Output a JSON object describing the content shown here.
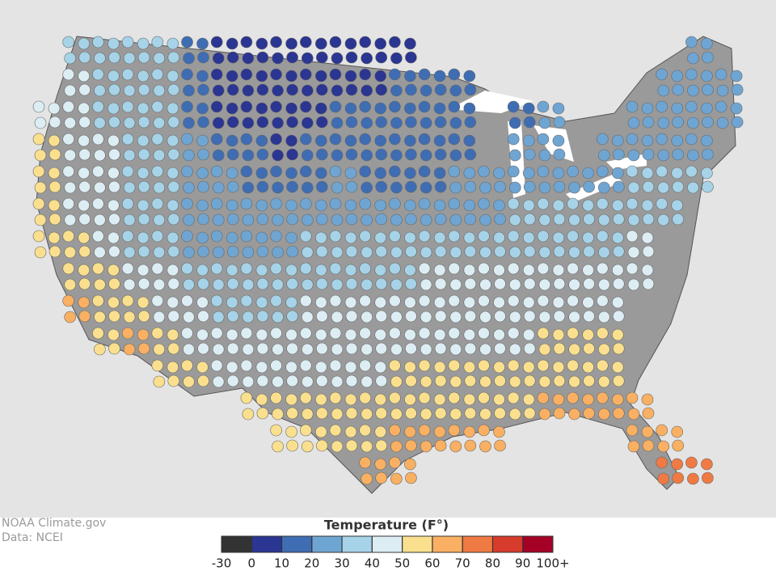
{
  "credits": {
    "source": "NOAA Climate.gov",
    "data": "Data: NCEI"
  },
  "legend": {
    "title": "Temperature (F°)",
    "ticks": [
      -30,
      0,
      10,
      20,
      30,
      40,
      50,
      60,
      70,
      80,
      90,
      {
        "value": 100,
        "label": "100+"
      }
    ],
    "colors": [
      "#333333",
      "#2b3592",
      "#3f6db3",
      "#6fa5d2",
      "#a6d3e8",
      "#ddedf4",
      "#fae08e",
      "#f9b062",
      "#f07a43",
      "#d63b2c",
      "#a50026"
    ]
  },
  "temperature_grid": [
    [
      null,
      35,
      35,
      35,
      30,
      10,
      5,
      5,
      5,
      5,
      5,
      5,
      8,
      null,
      null,
      null,
      null,
      null,
      null,
      null,
      null,
      null,
      25,
      null
    ],
    [
      null,
      40,
      35,
      35,
      30,
      10,
      5,
      5,
      5,
      5,
      5,
      8,
      12,
      15,
      18,
      null,
      null,
      null,
      null,
      null,
      null,
      25,
      22,
      22
    ],
    [
      45,
      40,
      38,
      35,
      30,
      15,
      8,
      5,
      5,
      8,
      10,
      12,
      15,
      15,
      18,
      null,
      18,
      20,
      null,
      null,
      22,
      22,
      25,
      25
    ],
    [
      50,
      45,
      40,
      35,
      30,
      20,
      12,
      10,
      8,
      10,
      15,
      15,
      15,
      15,
      18,
      null,
      20,
      22,
      null,
      25,
      25,
      25,
      28,
      null
    ],
    [
      50,
      45,
      40,
      35,
      30,
      25,
      20,
      15,
      15,
      18,
      20,
      15,
      15,
      18,
      20,
      22,
      25,
      25,
      25,
      28,
      30,
      30,
      32,
      null
    ],
    [
      55,
      45,
      40,
      35,
      30,
      28,
      25,
      22,
      22,
      25,
      25,
      22,
      20,
      22,
      25,
      28,
      30,
      30,
      30,
      32,
      32,
      35,
      null,
      null
    ],
    [
      58,
      50,
      45,
      38,
      32,
      28,
      25,
      25,
      28,
      30,
      30,
      30,
      32,
      32,
      32,
      32,
      35,
      35,
      35,
      38,
      40,
      null,
      null,
      null
    ],
    [
      null,
      55,
      50,
      45,
      40,
      35,
      30,
      32,
      35,
      35,
      38,
      38,
      38,
      40,
      40,
      40,
      40,
      40,
      42,
      45,
      45,
      null,
      null,
      null
    ],
    [
      null,
      60,
      55,
      50,
      45,
      40,
      38,
      35,
      38,
      40,
      40,
      42,
      42,
      42,
      45,
      45,
      45,
      45,
      45,
      48,
      null,
      null,
      null,
      null
    ],
    [
      null,
      null,
      58,
      60,
      50,
      45,
      42,
      40,
      42,
      45,
      45,
      45,
      45,
      48,
      48,
      48,
      48,
      50,
      50,
      50,
      null,
      null,
      null,
      null
    ],
    [
      null,
      null,
      null,
      null,
      55,
      52,
      48,
      45,
      45,
      45,
      48,
      48,
      50,
      52,
      52,
      52,
      55,
      55,
      55,
      55,
      null,
      null,
      null,
      null
    ],
    [
      null,
      null,
      null,
      null,
      null,
      null,
      null,
      55,
      50,
      50,
      50,
      52,
      55,
      55,
      58,
      55,
      58,
      60,
      60,
      60,
      60,
      null,
      null,
      null
    ],
    [
      null,
      null,
      null,
      null,
      null,
      null,
      null,
      null,
      58,
      55,
      55,
      58,
      60,
      60,
      60,
      60,
      null,
      null,
      null,
      null,
      65,
      68,
      null,
      null
    ],
    [
      null,
      null,
      null,
      null,
      null,
      null,
      null,
      null,
      null,
      null,
      null,
      60,
      62,
      null,
      null,
      null,
      null,
      null,
      null,
      null,
      null,
      70,
      72,
      null
    ]
  ]
}
